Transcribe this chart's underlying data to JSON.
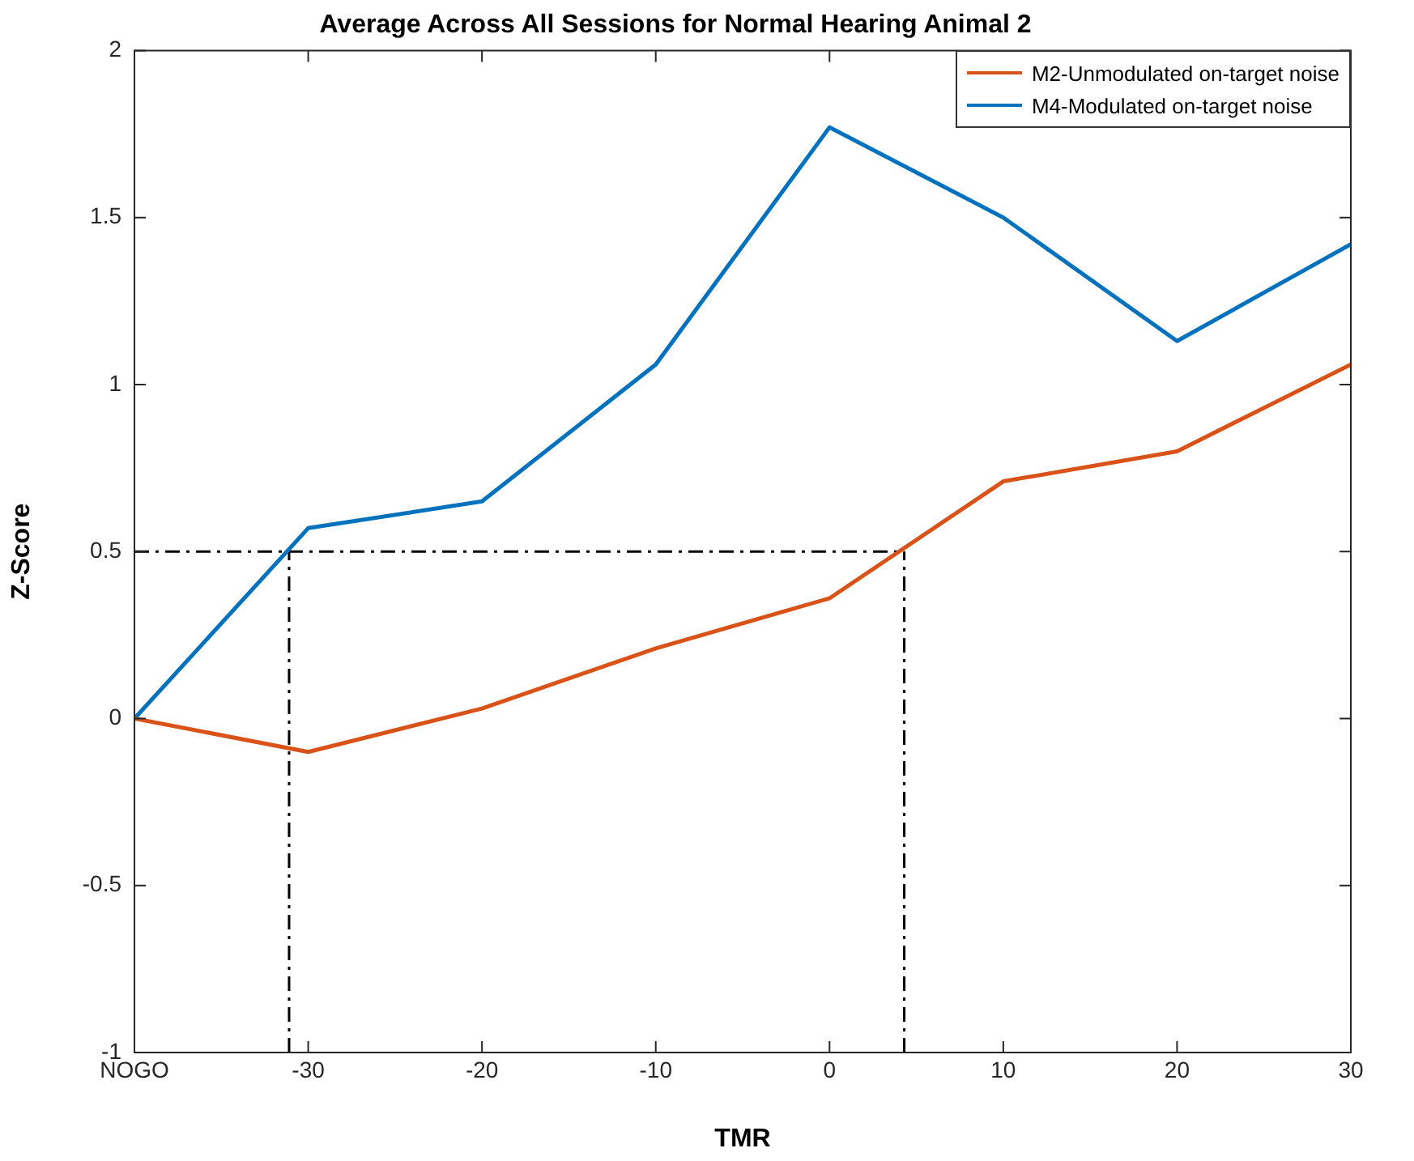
{
  "chart_data": {
    "type": "line",
    "title": "Average Across All Sessions for Normal Hearing Animal 2",
    "xlabel": "TMR",
    "ylabel": "Z-Score",
    "x": [
      -40,
      -30,
      -20,
      -10,
      0,
      10,
      20,
      30
    ],
    "series": [
      {
        "name": "M2-Unmodulated on-target noise",
        "color": "#d95319",
        "values": [
          0,
          -0.1,
          0.03,
          0.21,
          0.36,
          0.71,
          0.8,
          1.06
        ]
      },
      {
        "name": "M4-Modulated on-target noise",
        "color": "#0072bd",
        "values": [
          0,
          0.57,
          0.65,
          1.06,
          1.77,
          1.5,
          1.13,
          1.42
        ]
      },
      {
        "x": [
          -40,
          4.3
        ],
        "values": [
          0.5,
          0.5
        ],
        "color": "#000000",
        "line_style": "dashed"
      },
      {
        "x": [
          -31.1,
          -31.1
        ],
        "values": [
          -1,
          0.5
        ],
        "color": "#000000",
        "line_style": "dashed"
      },
      {
        "x": [
          4.3,
          4.3
        ],
        "values": [
          -1,
          0.5
        ],
        "color": "#000000",
        "line_style": "dashed"
      }
    ],
    "xlim": [
      -40,
      30
    ],
    "xticks": [
      {
        "value": -40,
        "label": "NOGO"
      },
      -30,
      -20,
      -10,
      0,
      10,
      20,
      30
    ],
    "ylim": [
      -1,
      2
    ],
    "yticks": [
      -1,
      -0.5,
      0,
      0.5,
      1,
      1.5,
      2
    ],
    "grid": false,
    "legend": "top right",
    "marker": "none",
    "line_style": "solid"
  }
}
